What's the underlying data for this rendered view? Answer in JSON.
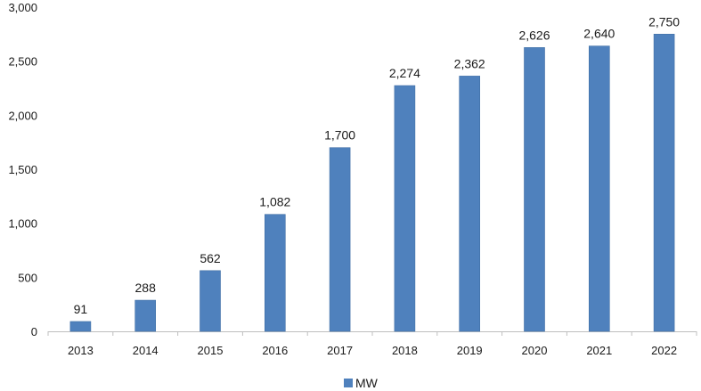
{
  "chart_data": {
    "type": "bar",
    "categories": [
      "2013",
      "2014",
      "2015",
      "2016",
      "2017",
      "2018",
      "2019",
      "2020",
      "2021",
      "2022"
    ],
    "series": [
      {
        "name": "MW",
        "values": [
          91,
          288,
          562,
          1082,
          1700,
          2274,
          2362,
          2626,
          2640,
          2750
        ],
        "data_labels": [
          "91",
          "288",
          "562",
          "1,082",
          "1,700",
          "2,274",
          "2,362",
          "2,626",
          "2,640",
          "2,750"
        ]
      }
    ],
    "yticks": [
      0,
      500,
      1000,
      1500,
      2000,
      2500,
      3000
    ],
    "ytick_labels": [
      "0",
      "500",
      "1,000",
      "1,500",
      "2,000",
      "2,500",
      "3,000"
    ],
    "ylim": [
      0,
      3000
    ],
    "grid": false,
    "legend_position": "bottom",
    "colors": {
      "bar": "#4f81bd",
      "bar_edge": "#3f6ea5",
      "axis": "#bfbfbf"
    }
  }
}
